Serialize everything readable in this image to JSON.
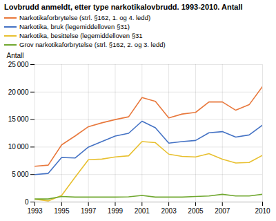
{
  "chart_data": {
    "type": "line",
    "title": "Lovbrudd anmeldt, etter type narkotikalovbrudd. 1993-2010. Antall",
    "ylabel": "Antall",
    "x": [
      1993,
      1994,
      1995,
      1996,
      1997,
      1998,
      1999,
      2000,
      2001,
      2002,
      2003,
      2004,
      2005,
      2006,
      2007,
      2008,
      2009,
      2010
    ],
    "series": [
      {
        "name": "Narkotikaforbrytelse (strl. §162, 1. og 4. ledd)",
        "color": "#E8783C",
        "values": [
          6500,
          6700,
          10400,
          12000,
          13700,
          14400,
          15000,
          15500,
          19000,
          18300,
          15300,
          16000,
          16300,
          18200,
          18200,
          16700,
          17700,
          21000
        ]
      },
      {
        "name": "Narkotika, bruk (legemiddelloven §31)",
        "color": "#4472C4",
        "values": [
          5000,
          5200,
          8100,
          8000,
          10000,
          11000,
          12000,
          12500,
          14700,
          13500,
          10700,
          11000,
          11200,
          12600,
          12800,
          11800,
          12200,
          14000
        ]
      },
      {
        "name": "Narkotika, besittelse (legemiddelloven §31",
        "color": "#E8C030",
        "values": [
          500,
          200,
          1200,
          4500,
          7700,
          7800,
          8200,
          8400,
          11000,
          10800,
          8700,
          8300,
          8200,
          8800,
          7800,
          7100,
          7200,
          8500
        ]
      },
      {
        "name": "Grov narkotikaforbrytelse (strl. §162, 2. og 3. ledd)",
        "color": "#70A830",
        "values": [
          550,
          550,
          1000,
          900,
          900,
          900,
          900,
          950,
          1200,
          900,
          900,
          900,
          1000,
          1100,
          1400,
          1100,
          1100,
          1400
        ]
      }
    ],
    "xlim": [
      1993,
      2010
    ],
    "xticks": [
      1993,
      1995,
      1997,
      1999,
      2001,
      2003,
      2005,
      2007,
      2010
    ],
    "ylim": [
      0,
      25000
    ],
    "yticks": [
      0,
      {
        "value": 5000,
        "label": "5 000"
      },
      {
        "value": 10000,
        "label": "10 000"
      },
      {
        "value": 15000,
        "label": "15 000"
      },
      {
        "value": 20000,
        "label": "20 000"
      },
      {
        "value": 25000,
        "label": "25 000"
      }
    ],
    "grid": true,
    "legend": "upper left"
  }
}
